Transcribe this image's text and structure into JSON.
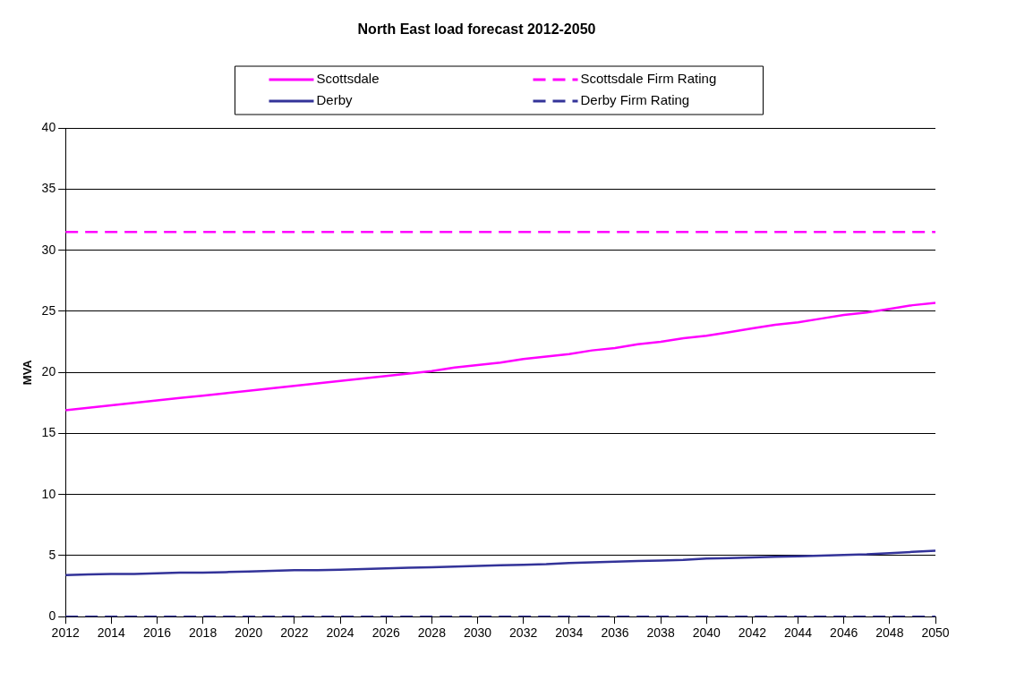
{
  "chart_data": {
    "type": "line",
    "title": "North East load forecast 2012-2050",
    "ylabel": "MVA",
    "x": [
      2012,
      2013,
      2014,
      2015,
      2016,
      2017,
      2018,
      2019,
      2020,
      2021,
      2022,
      2023,
      2024,
      2025,
      2026,
      2027,
      2028,
      2029,
      2030,
      2031,
      2032,
      2033,
      2034,
      2035,
      2036,
      2037,
      2038,
      2039,
      2040,
      2041,
      2042,
      2043,
      2044,
      2045,
      2046,
      2047,
      2048,
      2049,
      2050
    ],
    "series": [
      {
        "name": "Scottsdale",
        "color": "#ff00ff",
        "line_style": "solid",
        "values": [
          16.9,
          17.1,
          17.3,
          17.5,
          17.7,
          17.9,
          18.1,
          18.3,
          18.5,
          18.7,
          18.9,
          19.1,
          19.3,
          19.5,
          19.7,
          19.9,
          20.1,
          20.4,
          20.6,
          20.8,
          21.1,
          21.3,
          21.5,
          21.8,
          22.0,
          22.3,
          22.5,
          22.8,
          23.0,
          23.3,
          23.6,
          23.9,
          24.1,
          24.4,
          24.7,
          24.9,
          25.2,
          25.5,
          25.7
        ]
      },
      {
        "name": "Scottsdale Firm Rating",
        "color": "#ff00ff",
        "line_style": "dashed",
        "values": [
          31.5,
          31.5,
          31.5,
          31.5,
          31.5,
          31.5,
          31.5,
          31.5,
          31.5,
          31.5,
          31.5,
          31.5,
          31.5,
          31.5,
          31.5,
          31.5,
          31.5,
          31.5,
          31.5,
          31.5,
          31.5,
          31.5,
          31.5,
          31.5,
          31.5,
          31.5,
          31.5,
          31.5,
          31.5,
          31.5,
          31.5,
          31.5,
          31.5,
          31.5,
          31.5,
          31.5,
          31.5,
          31.5,
          31.5
        ]
      },
      {
        "name": "Derby",
        "color": "#333399",
        "line_style": "solid",
        "values": [
          3.4,
          3.45,
          3.5,
          3.5,
          3.55,
          3.6,
          3.6,
          3.65,
          3.7,
          3.75,
          3.8,
          3.8,
          3.85,
          3.9,
          3.95,
          4.0,
          4.05,
          4.1,
          4.15,
          4.2,
          4.25,
          4.3,
          4.4,
          4.45,
          4.5,
          4.55,
          4.6,
          4.65,
          4.75,
          4.8,
          4.85,
          4.9,
          4.95,
          5.0,
          5.05,
          5.1,
          5.2,
          5.3,
          5.4
        ]
      },
      {
        "name": "Derby Firm Rating",
        "color": "#333399",
        "line_style": "dashed",
        "values": [
          0,
          0,
          0,
          0,
          0,
          0,
          0,
          0,
          0,
          0,
          0,
          0,
          0,
          0,
          0,
          0,
          0,
          0,
          0,
          0,
          0,
          0,
          0,
          0,
          0,
          0,
          0,
          0,
          0,
          0,
          0,
          0,
          0,
          0,
          0,
          0,
          0,
          0,
          0
        ]
      }
    ],
    "xlim": [
      2012,
      2050
    ],
    "xticks": [
      2012,
      2014,
      2016,
      2018,
      2020,
      2022,
      2024,
      2026,
      2028,
      2030,
      2032,
      2034,
      2036,
      2038,
      2040,
      2042,
      2044,
      2046,
      2048,
      2050
    ],
    "ylim": [
      0,
      40
    ],
    "yticks": [
      0,
      5,
      10,
      15,
      20,
      25,
      30,
      35,
      40
    ],
    "grid": "y",
    "legend": "top",
    "marker": "none"
  }
}
